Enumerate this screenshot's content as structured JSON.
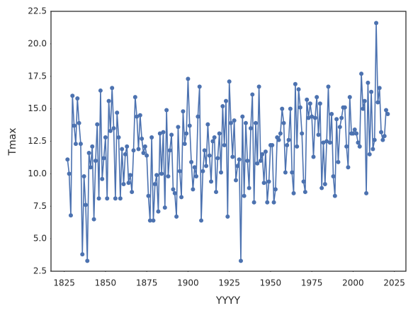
{
  "chart_data": {
    "type": "line",
    "xlabel": "YYYY",
    "ylabel": "Tmax",
    "color": "#4c72b0",
    "marker": true,
    "x": [
      1827,
      1828,
      1829,
      1830,
      1831,
      1832,
      1833,
      1834,
      1835,
      1836,
      1837,
      1838,
      1839,
      1840,
      1841,
      1842,
      1843,
      1844,
      1845,
      1846,
      1847,
      1848,
      1849,
      1850,
      1851,
      1852,
      1853,
      1854,
      1855,
      1856,
      1857,
      1858,
      1859,
      1860,
      1861,
      1862,
      1863,
      1864,
      1865,
      1866,
      1867,
      1868,
      1869,
      1870,
      1871,
      1872,
      1873,
      1874,
      1875,
      1876,
      1877,
      1878,
      1879,
      1880,
      1881,
      1882,
      1883,
      1884,
      1885,
      1886,
      1887,
      1888,
      1889,
      1890,
      1891,
      1892,
      1893,
      1894,
      1895,
      1896,
      1897,
      1898,
      1899,
      1900,
      1901,
      1902,
      1903,
      1904,
      1905,
      1906,
      1907,
      1908,
      1909,
      1910,
      1911,
      1912,
      1913,
      1914,
      1915,
      1916,
      1917,
      1918,
      1919,
      1920,
      1921,
      1922,
      1923,
      1924,
      1925,
      1926,
      1927,
      1928,
      1929,
      1930,
      1931,
      1932,
      1933,
      1934,
      1935,
      1936,
      1937,
      1938,
      1939,
      1940,
      1941,
      1942,
      1943,
      1944,
      1945,
      1946,
      1947,
      1948,
      1949,
      1950,
      1951,
      1952,
      1953,
      1954,
      1955,
      1956,
      1957,
      1958,
      1959,
      1960,
      1961,
      1962,
      1963,
      1964,
      1965,
      1966,
      1967,
      1968,
      1969,
      1970,
      1971,
      1972,
      1973,
      1974,
      1975,
      1976,
      1977,
      1978,
      1979,
      1980,
      1981,
      1982,
      1983,
      1984,
      1985,
      1986,
      1987,
      1988,
      1989,
      1990,
      1991,
      1992,
      1993,
      1994,
      1995,
      1996,
      1997,
      1998,
      1999,
      2000,
      2001,
      2002,
      2003,
      2004,
      2005,
      2006,
      2007,
      2008,
      2009,
      2010,
      2011,
      2012,
      2013,
      2014,
      2015,
      2016,
      2017,
      2018,
      2019,
      2020,
      2021
    ],
    "values": [
      11.1,
      10.0,
      6.8,
      16.0,
      13.7,
      12.3,
      15.8,
      13.9,
      12.3,
      3.8,
      9.8,
      7.6,
      3.3,
      11.6,
      10.5,
      12.1,
      6.5,
      11.0,
      13.8,
      8.1,
      16.4,
      9.6,
      11.2,
      12.8,
      8.1,
      15.6,
      13.3,
      16.6,
      13.5,
      8.1,
      14.7,
      12.8,
      8.1,
      11.9,
      9.2,
      11.5,
      12.1,
      9.3,
      9.9,
      8.6,
      11.8,
      15.9,
      14.4,
      11.9,
      14.5,
      12.7,
      11.6,
      12.1,
      11.4,
      8.3,
      6.4,
      12.8,
      6.4,
      9.2,
      9.9,
      7.1,
      13.1,
      10.0,
      13.2,
      7.4,
      14.9,
      9.8,
      11.8,
      13.0,
      8.8,
      8.5,
      6.7,
      13.6,
      10.2,
      8.2,
      14.8,
      12.3,
      13.1,
      17.3,
      13.7,
      10.9,
      8.8,
      10.5,
      9.8,
      14.4,
      16.7,
      6.4,
      10.2,
      11.8,
      10.6,
      13.8,
      11.4,
      9.4,
      12.5,
      12.8,
      8.6,
      11.2,
      13.1,
      10.1,
      15.2,
      12.2,
      15.6,
      6.7,
      17.1,
      13.9,
      11.3,
      14.1,
      9.5,
      10.6,
      11.1,
      3.3,
      14.4,
      8.3,
      13.9,
      11.0,
      8.9,
      13.5,
      16.1,
      7.8,
      13.9,
      10.8,
      16.7,
      11.0,
      11.5,
      9.3,
      11.7,
      7.8,
      9.4,
      12.2,
      12.2,
      7.8,
      8.8,
      12.8,
      12.6,
      13.1,
      15.0,
      13.9,
      10.1,
      12.2,
      12.6,
      15.0,
      10.1,
      8.5,
      16.9,
      12.1,
      16.5,
      15.1,
      13.1,
      9.4,
      8.6,
      15.7,
      14.3,
      15.4,
      14.4,
      11.3,
      14.3,
      15.9,
      13.0,
      15.4,
      8.9,
      12.4,
      9.2,
      12.5,
      16.7,
      12.4,
      14.6,
      9.8,
      8.3,
      14.2,
      10.9,
      13.6,
      14.3,
      15.1,
      15.1,
      12.1,
      10.5,
      15.9,
      13.1,
      13.1,
      13.4,
      13.1,
      12.4,
      12.1,
      17.7,
      15.0,
      15.6,
      8.5,
      17.0,
      11.5,
      16.3,
      11.9,
      12.6,
      21.6,
      15.5,
      16.6,
      13.2,
      12.6,
      12.9,
      14.9,
      14.6
    ],
    "xlim": [
      1817,
      2032
    ],
    "xticks": [
      1825,
      1850,
      1875,
      1900,
      1925,
      1950,
      1975,
      2000,
      2025
    ],
    "ylim": [
      2.5,
      22.5
    ],
    "yticks": [
      2.5,
      {
        "value": 5,
        "label": "5.0"
      },
      7.5,
      {
        "value": 10,
        "label": "10.0"
      },
      12.5,
      {
        "value": 15,
        "label": "15.0"
      },
      17.5,
      {
        "value": 20,
        "label": "20.0"
      },
      22.5
    ],
    "grid": false
  }
}
